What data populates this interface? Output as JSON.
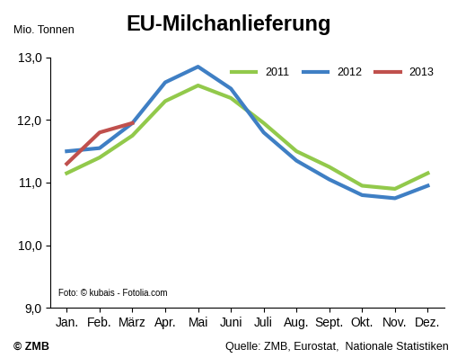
{
  "chart_data": {
    "type": "line",
    "title": "EU-Milchanlieferung",
    "y_label": "Mio. Tonnen",
    "photo_credit": "Foto: © kubais - Fotolia.com",
    "copyright": "© ZMB",
    "source": "Quelle: ZMB, Eurostat,  Nationale Statistiken",
    "categories": [
      "Jan.",
      "Feb.",
      "März",
      "Apr.",
      "Mai",
      "Juni",
      "Juli",
      "Aug.",
      "Sept.",
      "Okt.",
      "Nov.",
      "Dez."
    ],
    "series": [
      {
        "name": "2011",
        "color": "#92c94b",
        "values": [
          11.15,
          11.4,
          11.75,
          12.3,
          12.55,
          12.35,
          11.95,
          11.5,
          11.25,
          10.95,
          10.9,
          11.15
        ]
      },
      {
        "name": "2012",
        "color": "#3f7fc4",
        "values": [
          11.5,
          11.55,
          11.95,
          12.6,
          12.85,
          12.5,
          11.8,
          11.35,
          11.05,
          10.8,
          10.75,
          10.95
        ]
      },
      {
        "name": "2013",
        "color": "#c0504d",
        "values": [
          11.3,
          11.8,
          11.95,
          null,
          null,
          null,
          null,
          null,
          null,
          null,
          null,
          null
        ]
      }
    ],
    "ylim": [
      9,
      13
    ],
    "yticks": [
      {
        "value": 9,
        "label": "9,0"
      },
      {
        "value": 10,
        "label": "10,0"
      },
      {
        "value": 11,
        "label": "11,0"
      },
      {
        "value": 12,
        "label": "12,0"
      },
      {
        "value": 13,
        "label": "13,0"
      }
    ],
    "legend": "upper right",
    "grid": false
  }
}
